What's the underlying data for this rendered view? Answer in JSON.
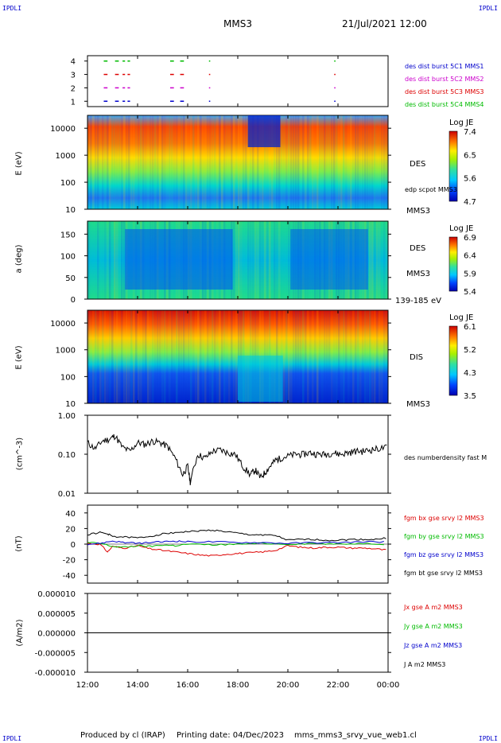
{
  "header": {
    "corner_tl": "IPDLI",
    "corner_tr": "IPDLI",
    "corner_bl": "IPDLI",
    "corner_br": "IPDLI",
    "spacecraft": "MMS3",
    "datetime": "21/Jul/2021 12:00"
  },
  "footer": {
    "produced_by": "Produced by cl (IRAP)",
    "printing_date": "Printing date: 04/Dec/2023",
    "file": "mms_mms3_srvy_vue_web1.cl"
  },
  "colors": {
    "red": "#dd0000",
    "green": "#00bb00",
    "blue": "#0000cc",
    "magenta": "#cc00cc",
    "black": "#000000"
  },
  "chart_data": [
    {
      "type": "scatter",
      "name": "burst-availability",
      "yticks": [
        "4",
        "3",
        "2",
        "1"
      ],
      "ylim": [
        0.6,
        4.4
      ],
      "legend": [
        {
          "label": "des dist burst 5C1 MMS1",
          "color": "#0000cc"
        },
        {
          "label": "des dist burst 5C2 MMS2",
          "color": "#cc00cc"
        },
        {
          "label": "des dist burst 5C3 MMS3",
          "color": "#dd0000"
        },
        {
          "label": "des dist burst 5C4 MMS4",
          "color": "#00bb00"
        }
      ],
      "x_intervals_hours": [
        [
          12.65,
          12.8
        ],
        [
          13.1,
          13.25
        ],
        [
          13.4,
          13.5
        ],
        [
          13.6,
          13.7
        ],
        [
          15.3,
          15.45
        ],
        [
          15.7,
          15.85
        ],
        [
          16.85,
          16.9
        ],
        [
          21.85,
          21.9
        ]
      ]
    },
    {
      "type": "heatmap",
      "name": "des-energy-spectrogram",
      "ylabel": "E (eV)",
      "yscale": "log",
      "ylim": [
        10,
        30000
      ],
      "yticks": [
        "10000",
        "1000",
        "100",
        "10"
      ],
      "colorbar": {
        "label": "Log JE",
        "ticks": [
          "7.4",
          "6.5",
          "5.6",
          "4.7"
        ],
        "range": [
          4.7,
          7.4
        ]
      },
      "labels": [
        "DES",
        "edp scpot MMS3",
        "MMS3"
      ]
    },
    {
      "type": "heatmap",
      "name": "des-pitch-angle",
      "ylabel": "a (deg)",
      "ylim": [
        0,
        180
      ],
      "yticks": [
        "150",
        "100",
        "50",
        "0"
      ],
      "colorbar": {
        "label": "Log JE",
        "ticks": [
          "6.9",
          "6.4",
          "5.9",
          "5.4"
        ],
        "range": [
          5.4,
          6.9
        ]
      },
      "labels": [
        "DES",
        "MMS3",
        "139-185 eV"
      ]
    },
    {
      "type": "heatmap",
      "name": "dis-energy-spectrogram",
      "ylabel": "E (eV)",
      "yscale": "log",
      "ylim": [
        10,
        30000
      ],
      "yticks": [
        "10000",
        "1000",
        "100",
        "10"
      ],
      "colorbar": {
        "label": "Log JE",
        "ticks": [
          "6.1",
          "5.2",
          "4.3",
          "3.5"
        ],
        "range": [
          3.5,
          6.1
        ]
      },
      "labels": [
        "DIS",
        "MMS3"
      ]
    },
    {
      "type": "line",
      "name": "number-density",
      "ylabel": "(cm^-3)",
      "yscale": "log",
      "ylim": [
        0.01,
        1.0
      ],
      "yticks": [
        "1.00",
        "0.10",
        "0.01"
      ],
      "series": [
        {
          "name": "des numberdensity fast M",
          "color": "#000000",
          "x": [
            12.0,
            12.3,
            12.6,
            12.9,
            13.1,
            13.4,
            13.7,
            14.0,
            14.3,
            14.6,
            14.9,
            15.2,
            15.5,
            15.8,
            16.0,
            16.1,
            16.4,
            16.7,
            17.0,
            17.3,
            17.6,
            17.9,
            18.2,
            18.5,
            18.7,
            18.9,
            19.1,
            19.3,
            19.5,
            19.7,
            20.0,
            20.3,
            20.6,
            20.9,
            21.2,
            21.5,
            21.8,
            22.1,
            22.4,
            22.7,
            23.0,
            23.3,
            23.6,
            24.0
          ],
          "values": [
            0.2,
            0.14,
            0.22,
            0.25,
            0.3,
            0.15,
            0.12,
            0.2,
            0.18,
            0.22,
            0.2,
            0.16,
            0.08,
            0.03,
            0.05,
            0.02,
            0.1,
            0.08,
            0.12,
            0.13,
            0.11,
            0.1,
            0.05,
            0.03,
            0.04,
            0.025,
            0.035,
            0.05,
            0.07,
            0.08,
            0.09,
            0.1,
            0.1,
            0.11,
            0.1,
            0.1,
            0.11,
            0.1,
            0.11,
            0.12,
            0.12,
            0.13,
            0.14,
            0.15
          ]
        }
      ]
    },
    {
      "type": "line",
      "name": "magnetic-field",
      "ylabel": "(nT)",
      "ylim": [
        -50,
        50
      ],
      "yticks": [
        "40",
        "20",
        "0",
        "-20",
        "-40"
      ],
      "series": [
        {
          "name": "fgm bx gse srvy l2 MMS3",
          "color": "#dd0000",
          "x": [
            12.0,
            12.5,
            12.8,
            13.0,
            13.5,
            14.0,
            14.5,
            15.0,
            15.5,
            16.0,
            16.5,
            17.0,
            17.5,
            18.0,
            18.5,
            19.0,
            19.5,
            20.0,
            20.5,
            21.0,
            21.5,
            22.0,
            22.5,
            23.0,
            23.5,
            24.0
          ],
          "values": [
            1,
            0,
            -10,
            -3,
            -5,
            -2,
            -6,
            -8,
            -10,
            -12,
            -14,
            -15,
            -13,
            -12,
            -11,
            -10,
            -8,
            -2,
            -4,
            -5,
            -4,
            -4,
            -5,
            -5,
            -6,
            -8
          ]
        },
        {
          "name": "fgm by gse srvy l2 MMS3",
          "color": "#00bb00",
          "x": [
            12.0,
            12.5,
            13.0,
            13.5,
            14.0,
            14.5,
            15.0,
            15.5,
            16.0,
            17.0,
            18.0,
            19.0,
            20.0,
            21.0,
            22.0,
            23.0,
            24.0
          ],
          "values": [
            2,
            1,
            -3,
            -4,
            -2,
            -3,
            -1,
            -2,
            0,
            -1,
            0,
            1,
            0,
            1,
            0,
            1,
            0
          ]
        },
        {
          "name": "fgm bz gse srvy l2 MMS3",
          "color": "#0000cc",
          "x": [
            12.0,
            12.5,
            13.0,
            13.5,
            14.0,
            14.5,
            15.0,
            15.5,
            16.0,
            17.0,
            18.0,
            19.0,
            20.0,
            21.0,
            22.0,
            23.0,
            24.0
          ],
          "values": [
            0,
            1,
            4,
            2,
            1,
            2,
            3,
            4,
            3,
            3,
            2,
            2,
            1,
            2,
            2,
            3,
            3
          ]
        },
        {
          "name": "fgm bt gse srvy l2 MMS3",
          "color": "#000000",
          "x": [
            12.0,
            12.5,
            12.8,
            13.0,
            13.5,
            14.0,
            14.5,
            15.0,
            15.5,
            16.0,
            16.5,
            17.0,
            17.5,
            18.0,
            18.5,
            19.0,
            19.5,
            20.0,
            20.5,
            21.0,
            21.5,
            22.0,
            22.5,
            23.0,
            23.5,
            24.0
          ],
          "values": [
            12,
            15,
            13,
            10,
            9,
            8,
            10,
            13,
            15,
            16,
            17,
            18,
            16,
            14,
            12,
            12,
            11,
            5,
            6,
            6,
            5,
            5,
            6,
            6,
            6,
            8
          ]
        }
      ]
    },
    {
      "type": "line",
      "name": "current-density",
      "ylabel": "(A/m2)",
      "ylim": [
        -1e-05,
        1e-05
      ],
      "yticks": [
        "0.000010",
        "0.000005",
        "0.000000",
        "-0.000005",
        "-0.000010"
      ],
      "series": [
        {
          "name": "Jx gse A m2 MMS3",
          "color": "#dd0000"
        },
        {
          "name": "Jy gse A m2 MMS3",
          "color": "#00bb00"
        },
        {
          "name": "Jz gse A m2 MMS3",
          "color": "#0000cc"
        },
        {
          "name": "J A m2 MMS3",
          "color": "#000000"
        }
      ]
    }
  ],
  "xaxis": {
    "range_hours": [
      12,
      24
    ],
    "ticks": [
      "12:00",
      "14:00",
      "16:00",
      "18:00",
      "20:00",
      "22:00",
      "00:00"
    ]
  }
}
